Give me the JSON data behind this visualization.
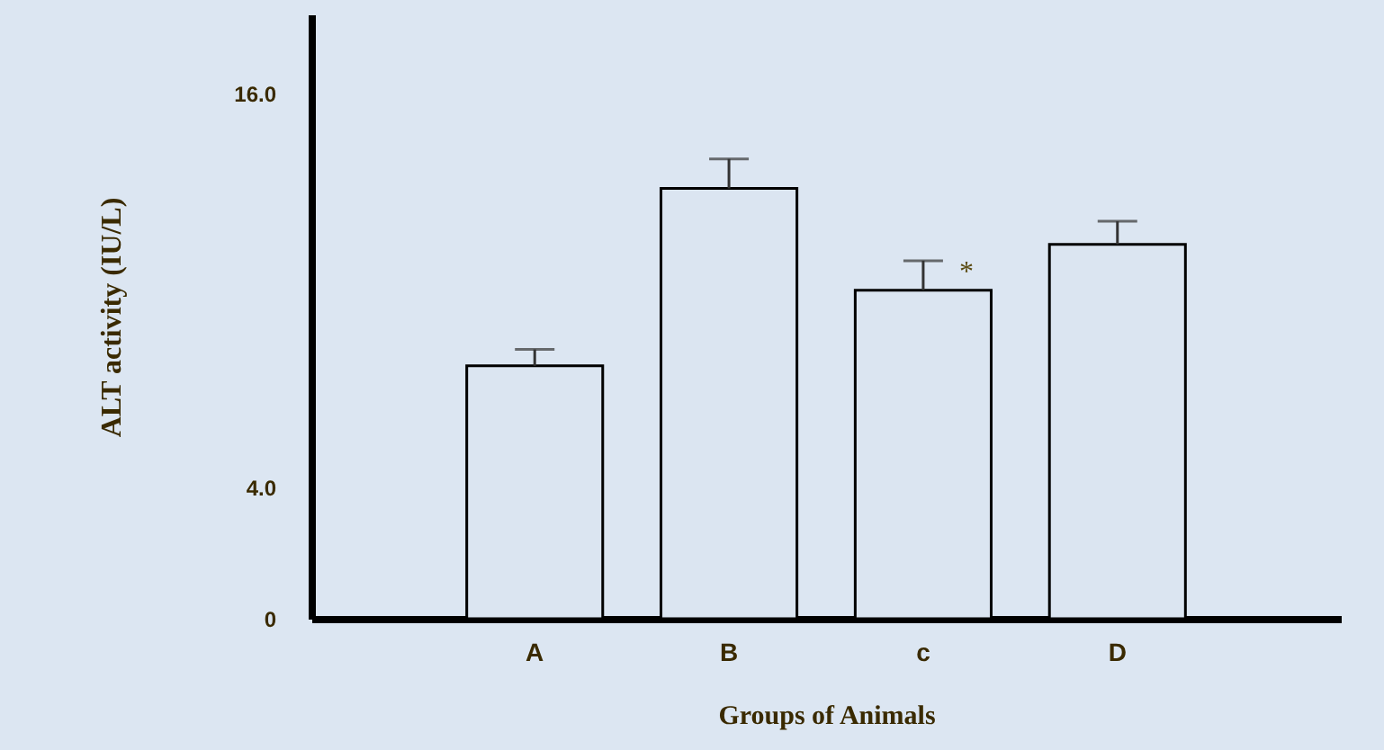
{
  "chart_data": {
    "type": "bar",
    "xlabel": "Groups of Animals",
    "ylabel": "ALT activity (IU/L)",
    "categories": [
      "A",
      "B",
      "c",
      "D"
    ],
    "values": [
      7.7,
      13.1,
      10.0,
      11.4
    ],
    "errors": [
      [
        7.7,
        8.2
      ],
      [
        13.1,
        14.0
      ],
      [
        10.0,
        10.9
      ],
      [
        11.4,
        12.1
      ]
    ],
    "color": "#dbe5f1",
    "ylim": [
      0,
      18.4
    ],
    "yticks": [
      0,
      {
        "value": 4,
        "label": "4.0"
      },
      {
        "value": 16,
        "label": "16.0"
      }
    ],
    "annotations": [
      {
        "text": "*",
        "x": "c",
        "y": 10.9
      }
    ]
  }
}
